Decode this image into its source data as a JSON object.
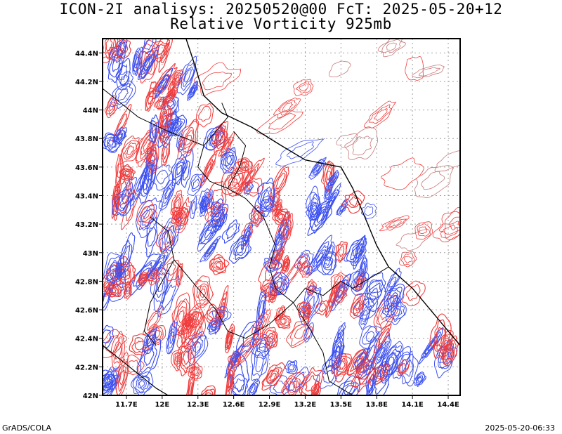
{
  "title": {
    "line1": "ICON-2I analisys: 20250520@00 FcT: 2025-05-20+12",
    "line2": "Relative Vorticity 925mb"
  },
  "footer": {
    "left": "GrADS/COLA",
    "right": "2025-05-20-06:33"
  },
  "map": {
    "lon_range": [
      11.5,
      14.5
    ],
    "lat_range": [
      42.0,
      44.5
    ],
    "lon_ticks": [
      "11.7E",
      "12E",
      "12.3E",
      "12.6E",
      "12.9E",
      "13.2E",
      "13.5E",
      "13.8E",
      "14.1E",
      "14.4E"
    ],
    "lat_ticks": [
      "44.4N",
      "44.2N",
      "44N",
      "43.8N",
      "43.6N",
      "43.4N",
      "43.2N",
      "43N",
      "42.8N",
      "42.6N",
      "42.4N",
      "42.2N",
      "42N"
    ],
    "colors": {
      "positive_vorticity": "#f03c3c",
      "negative_vorticity": "#3c50f0",
      "boundary": "#000000",
      "grid": "#a0a0a0",
      "weak_contour": "#c87878"
    }
  }
}
